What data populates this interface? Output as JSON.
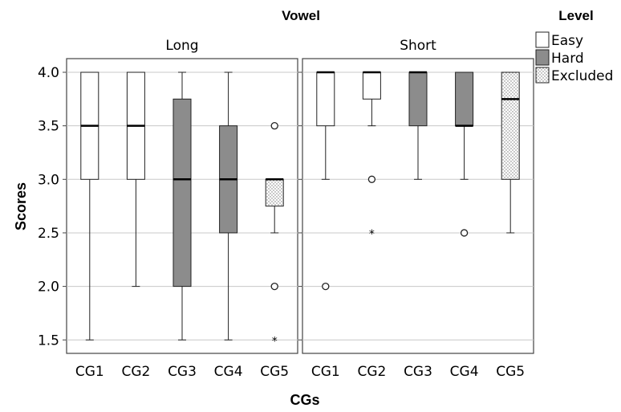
{
  "chart_data": {
    "type": "boxplot",
    "facet_title": "Vowel",
    "facets": [
      "Long",
      "Short"
    ],
    "xlabel": "CGs",
    "ylabel": "Scores",
    "ylim": [
      1.4,
      4.1
    ],
    "yticks": [
      "4.0",
      "3.5",
      "3.0",
      "2.5",
      "2.0",
      "1.5"
    ],
    "grid": "horizontal",
    "categories": [
      "CG1",
      "CG2",
      "CG3",
      "CG4",
      "CG5"
    ],
    "legend": {
      "title": "Level",
      "placement": "top-right",
      "entries": [
        {
          "name": "Easy",
          "fill": "#ffffff"
        },
        {
          "name": "Hard",
          "fill": "#8c8c8c"
        },
        {
          "name": "Excluded",
          "fill": "dotted"
        }
      ]
    },
    "boxes": [
      {
        "facet": "Long",
        "category": "CG1",
        "level": "Easy",
        "min": 1.5,
        "q1": 3.0,
        "median": 3.5,
        "q3": 4.0,
        "max": 4.0,
        "outliers": [],
        "extremes": []
      },
      {
        "facet": "Long",
        "category": "CG2",
        "level": "Easy",
        "min": 2.0,
        "q1": 3.0,
        "median": 3.5,
        "q3": 4.0,
        "max": 4.0,
        "outliers": [],
        "extremes": []
      },
      {
        "facet": "Long",
        "category": "CG3",
        "level": "Hard",
        "min": 1.5,
        "q1": 2.0,
        "median": 3.0,
        "q3": 3.75,
        "max": 4.0,
        "outliers": [],
        "extremes": []
      },
      {
        "facet": "Long",
        "category": "CG4",
        "level": "Hard",
        "min": 1.5,
        "q1": 2.5,
        "median": 3.0,
        "q3": 3.5,
        "max": 4.0,
        "outliers": [],
        "extremes": []
      },
      {
        "facet": "Long",
        "category": "CG5",
        "level": "Excluded",
        "min": 2.5,
        "q1": 2.75,
        "median": 3.0,
        "q3": 3.0,
        "max": 3.0,
        "outliers": [
          3.5,
          2.0
        ],
        "extremes": [
          1.5
        ]
      },
      {
        "facet": "Short",
        "category": "CG1",
        "level": "Easy",
        "min": 3.0,
        "q1": 3.5,
        "median": 4.0,
        "q3": 4.0,
        "max": 4.0,
        "outliers": [
          2.0
        ],
        "extremes": []
      },
      {
        "facet": "Short",
        "category": "CG2",
        "level": "Easy",
        "min": 3.5,
        "q1": 3.75,
        "median": 4.0,
        "q3": 4.0,
        "max": 4.0,
        "outliers": [
          3.0
        ],
        "extremes": [
          2.5
        ]
      },
      {
        "facet": "Short",
        "category": "CG3",
        "level": "Hard",
        "min": 3.0,
        "q1": 3.5,
        "median": 4.0,
        "q3": 4.0,
        "max": 4.0,
        "outliers": [],
        "extremes": []
      },
      {
        "facet": "Short",
        "category": "CG4",
        "level": "Hard",
        "min": 3.0,
        "q1": 3.5,
        "median": 3.5,
        "q3": 4.0,
        "max": 4.0,
        "outliers": [
          2.5
        ],
        "extremes": []
      },
      {
        "facet": "Short",
        "category": "CG5",
        "level": "Excluded",
        "min": 2.5,
        "q1": 3.0,
        "median": 3.75,
        "q3": 4.0,
        "max": 4.0,
        "outliers": [],
        "extremes": []
      }
    ]
  }
}
